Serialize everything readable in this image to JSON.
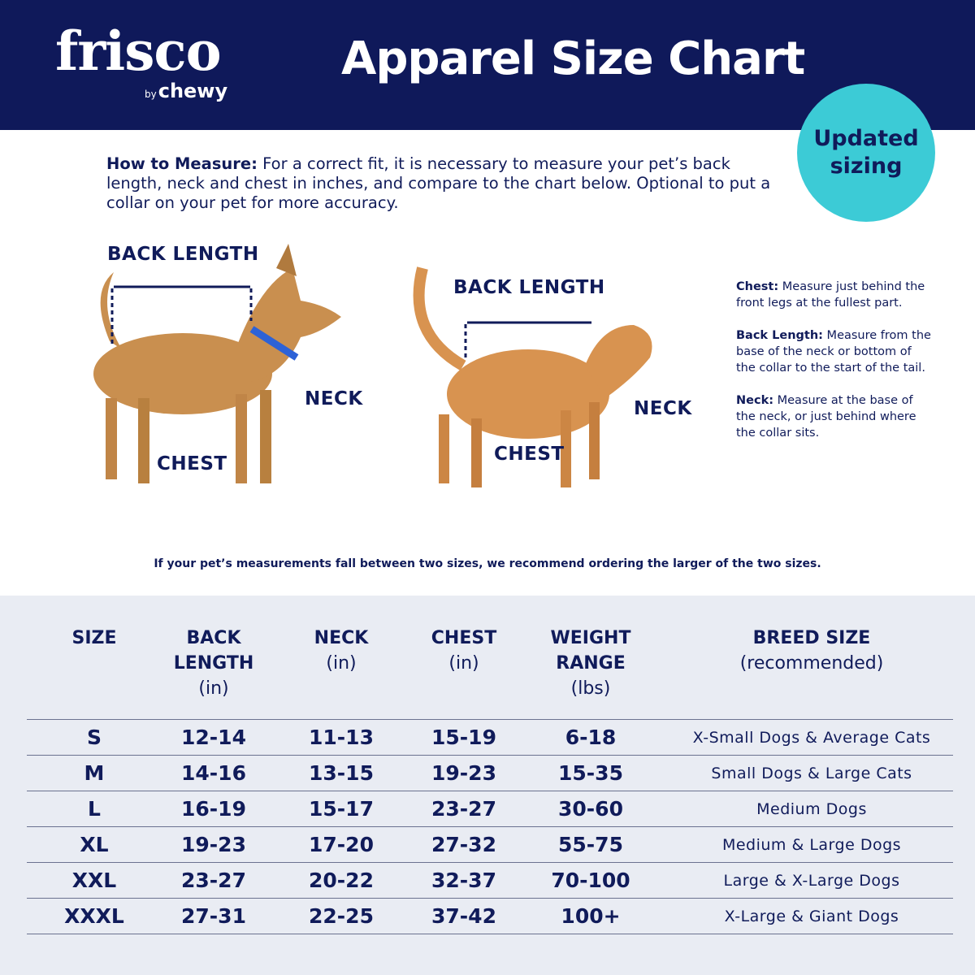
{
  "brand": {
    "logo": "frisco",
    "sub_by": "by",
    "sub_name": "chewy"
  },
  "title": "Apparel Size Chart",
  "badge": "Updated sizing",
  "colors": {
    "navy": "#0f195a",
    "teal": "#3ccbd6",
    "table_bg": "#e9ecf3"
  },
  "intro": {
    "bold": "How to Measure:",
    "text": " For a correct fit, it is necessary to measure your pet’s back length, neck and chest in inches, and compare to the chart below. Optional to put a collar on your pet for more accuracy."
  },
  "dog": {
    "back": "BACK LENGTH",
    "neck": "NECK",
    "chest": "CHEST"
  },
  "cat": {
    "back": "BACK LENGTH",
    "neck": "NECK",
    "chest": "CHEST"
  },
  "notes": [
    {
      "bold": "Chest:",
      "text": " Measure just behind the front legs at the fullest part."
    },
    {
      "bold": "Back Length:",
      "text": " Measure from the base of the neck or bottom of the collar to the start of the tail."
    },
    {
      "bold": "Neck:",
      "text": " Measure at the base of the neck, or just behind where the collar sits."
    }
  ],
  "tip": "If your pet’s measurements fall between two sizes, we recommend ordering the larger of the two sizes.",
  "table": {
    "headers": [
      {
        "l1": "SIZE",
        "l2": "",
        "unit": ""
      },
      {
        "l1": "BACK",
        "l2": "LENGTH",
        "unit": "(in)"
      },
      {
        "l1": "NECK",
        "l2": "",
        "unit": "(in)"
      },
      {
        "l1": "CHEST",
        "l2": "",
        "unit": "(in)"
      },
      {
        "l1": "WEIGHT",
        "l2": "RANGE",
        "unit": "(lbs)"
      },
      {
        "l1": "BREED SIZE",
        "l2": "",
        "unit": "(recommended)"
      }
    ],
    "rows": [
      [
        "S",
        "12-14",
        "11-13",
        "15-19",
        "6-18",
        "X-Small Dogs & Average Cats"
      ],
      [
        "M",
        "14-16",
        "13-15",
        "19-23",
        "15-35",
        "Small Dogs & Large Cats"
      ],
      [
        "L",
        "16-19",
        "15-17",
        "23-27",
        "30-60",
        "Medium Dogs"
      ],
      [
        "XL",
        "19-23",
        "17-20",
        "27-32",
        "55-75",
        "Medium & Large Dogs"
      ],
      [
        "XXL",
        "23-27",
        "20-22",
        "32-37",
        "70-100",
        "Large & X-Large Dogs"
      ],
      [
        "XXXL",
        "27-31",
        "22-25",
        "37-42",
        "100+",
        "X-Large & Giant Dogs"
      ]
    ]
  }
}
